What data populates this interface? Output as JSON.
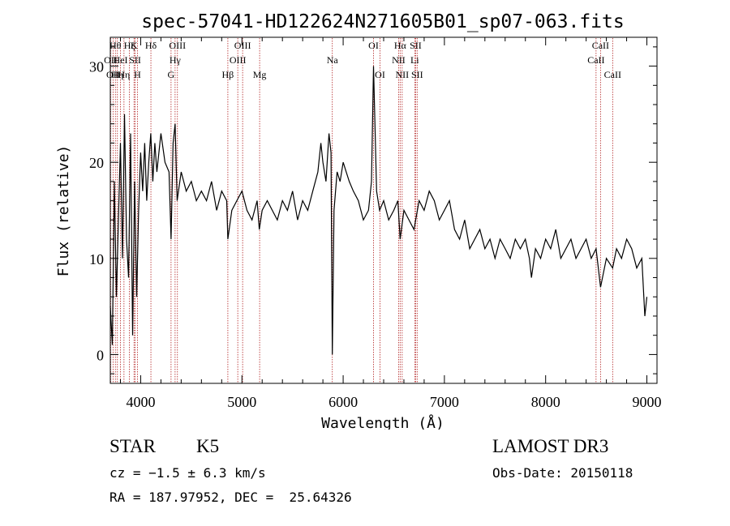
{
  "chart_data": {
    "type": "line",
    "title": "spec-57041-HD122624N271605B01_sp07-063.fits",
    "xlabel": "Wavelength (Å)",
    "ylabel": "Flux (relative)",
    "xlim": [
      3700,
      9100
    ],
    "ylim": [
      -3,
      33
    ],
    "x_ticks": [
      4000,
      5000,
      6000,
      7000,
      8000,
      9000
    ],
    "x_tick_labels": [
      "4000",
      "5000",
      "6000",
      "7000",
      "8000",
      "9000"
    ],
    "y_ticks": [
      0,
      10,
      20,
      30
    ],
    "y_tick_labels": [
      "0",
      "10",
      "20",
      "30"
    ],
    "grid": false,
    "series": [
      {
        "color": "#000000",
        "x": [
          3700,
          3720,
          3740,
          3760,
          3780,
          3800,
          3820,
          3840,
          3860,
          3880,
          3900,
          3920,
          3940,
          3960,
          3980,
          4000,
          4020,
          4040,
          4060,
          4080,
          4100,
          4120,
          4140,
          4160,
          4180,
          4200,
          4240,
          4280,
          4300,
          4320,
          4340,
          4360,
          4400,
          4450,
          4500,
          4550,
          4600,
          4650,
          4700,
          4750,
          4800,
          4850,
          4861,
          4900,
          4950,
          5000,
          5050,
          5100,
          5150,
          5172,
          5200,
          5250,
          5300,
          5350,
          5400,
          5450,
          5500,
          5550,
          5600,
          5650,
          5700,
          5750,
          5780,
          5800,
          5830,
          5860,
          5880,
          5893,
          5910,
          5940,
          5970,
          6000,
          6030,
          6060,
          6100,
          6150,
          6200,
          6250,
          6280,
          6300,
          6330,
          6360,
          6400,
          6450,
          6500,
          6540,
          6563,
          6600,
          6650,
          6700,
          6750,
          6800,
          6850,
          6900,
          6950,
          7000,
          7050,
          7100,
          7150,
          7200,
          7250,
          7300,
          7350,
          7400,
          7450,
          7500,
          7550,
          7600,
          7650,
          7700,
          7750,
          7800,
          7840,
          7860,
          7900,
          7950,
          8000,
          8050,
          8100,
          8150,
          8200,
          8250,
          8300,
          8350,
          8400,
          8450,
          8498,
          8542,
          8600,
          8662,
          8700,
          8750,
          8800,
          8850,
          8900,
          8950,
          8980,
          9000
        ],
        "y": [
          5,
          1,
          18,
          6,
          14,
          22,
          10,
          25,
          12,
          8,
          23,
          2,
          18,
          6,
          15,
          21,
          17,
          22,
          16,
          20,
          23,
          18,
          22,
          19,
          21,
          23,
          20,
          19,
          12,
          22,
          24,
          16,
          19,
          17,
          18,
          16,
          17,
          16,
          18,
          15,
          17,
          16,
          12,
          15,
          16,
          17,
          15,
          14,
          16,
          13,
          15,
          16,
          15,
          14,
          16,
          15,
          17,
          14,
          16,
          15,
          17,
          19,
          22,
          20,
          18,
          23,
          21,
          0,
          15,
          19,
          18,
          20,
          19,
          18,
          17,
          16,
          14,
          15,
          18,
          30,
          17,
          15,
          16,
          14,
          15,
          16,
          12,
          15,
          14,
          13,
          16,
          15,
          17,
          16,
          14,
          15,
          16,
          13,
          12,
          14,
          11,
          12,
          13,
          11,
          12,
          10,
          12,
          11,
          10,
          12,
          11,
          12,
          10,
          8,
          11,
          10,
          12,
          11,
          13,
          10,
          11,
          12,
          10,
          11,
          12,
          10,
          11,
          7,
          10,
          9,
          11,
          10,
          12,
          11,
          9,
          10,
          4,
          6
        ]
      }
    ],
    "line_markers": [
      {
        "wavelength": 3704,
        "label": "OII",
        "row": 1
      },
      {
        "wavelength": 3727,
        "label": "OII",
        "row": 2
      },
      {
        "wavelength": 3750,
        "label": "Hθ",
        "row": 0
      },
      {
        "wavelength": 3770,
        "label": "Hη",
        "row": 2
      },
      {
        "wavelength": 3800,
        "label": "HeI",
        "row": 1
      },
      {
        "wavelength": 3835,
        "label": "Hη",
        "row": 2
      },
      {
        "wavelength": 3889,
        "label": "Hζ",
        "row": 0
      },
      {
        "wavelength": 3934,
        "label": "K",
        "row": 0
      },
      {
        "wavelength": 3945,
        "label": "SII",
        "row": 1
      },
      {
        "wavelength": 3968,
        "label": "H",
        "row": 2
      },
      {
        "wavelength": 4101,
        "label": "Hδ",
        "row": 0
      },
      {
        "wavelength": 4300,
        "label": "G",
        "row": 2
      },
      {
        "wavelength": 4340,
        "label": "Hγ",
        "row": 1
      },
      {
        "wavelength": 4363,
        "label": "OIII",
        "row": 0
      },
      {
        "wavelength": 4861,
        "label": "Hβ",
        "row": 2
      },
      {
        "wavelength": 4959,
        "label": "OIII",
        "row": 1
      },
      {
        "wavelength": 5007,
        "label": "OIII",
        "row": 0
      },
      {
        "wavelength": 5175,
        "label": "Mg",
        "row": 2
      },
      {
        "wavelength": 5893,
        "label": "Na",
        "row": 1
      },
      {
        "wavelength": 6300,
        "label": "OI",
        "row": 0
      },
      {
        "wavelength": 6364,
        "label": "OI",
        "row": 2
      },
      {
        "wavelength": 6548,
        "label": "NII",
        "row": 1
      },
      {
        "wavelength": 6563,
        "label": "Hα",
        "row": 0
      },
      {
        "wavelength": 6583,
        "label": "NII",
        "row": 2
      },
      {
        "wavelength": 6707,
        "label": "Li",
        "row": 1
      },
      {
        "wavelength": 6716,
        "label": "SII",
        "row": 0
      },
      {
        "wavelength": 6731,
        "label": "SII",
        "row": 2
      },
      {
        "wavelength": 8498,
        "label": "CaII",
        "row": 1
      },
      {
        "wavelength": 8542,
        "label": "CaII",
        "row": 0
      },
      {
        "wavelength": 8662,
        "label": "CaII",
        "row": 2
      }
    ],
    "line_marker_color": "#b22222"
  },
  "info": {
    "class": "STAR",
    "subclass": "K5",
    "survey": "LAMOST DR3",
    "cz": "cz = −1.5 ± 6.3 km/s",
    "obs_date": "Obs-Date: 20150118",
    "radec": "RA = 187.97952, DEC =  25.64326"
  }
}
